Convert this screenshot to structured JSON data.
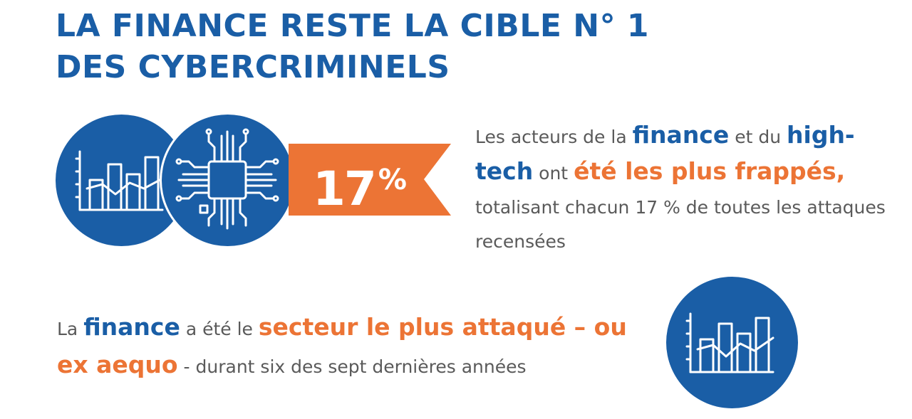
{
  "title": {
    "line1": "LA FINANCE RESTE LA CIBLE N° 1",
    "line2": "DES CYBERCRIMINELS"
  },
  "colors": {
    "brand_blue": "#1a5ea6",
    "accent_orange": "#ec7435",
    "body_gray": "#5a5a5a"
  },
  "icons": [
    "bar-line-chart-icon",
    "microchip-icon",
    "bar-line-chart-icon"
  ],
  "banner": {
    "value": "17",
    "unit": "%"
  },
  "stat1": {
    "t1": "Les acteurs de la ",
    "h1": "finance",
    "t2": " et du ",
    "h2": "high-tech",
    "t3": " ont ",
    "h3": "été les plus frappés,",
    "t4": " totalisant chacun 17 % de toutes les attaques recensées"
  },
  "stat2": {
    "t1": "La ",
    "h1": "finance",
    "t2": " a été le ",
    "h2": "secteur le plus attaqué – ou ex aequo",
    "t3": " - durant six des sept dernières années"
  }
}
